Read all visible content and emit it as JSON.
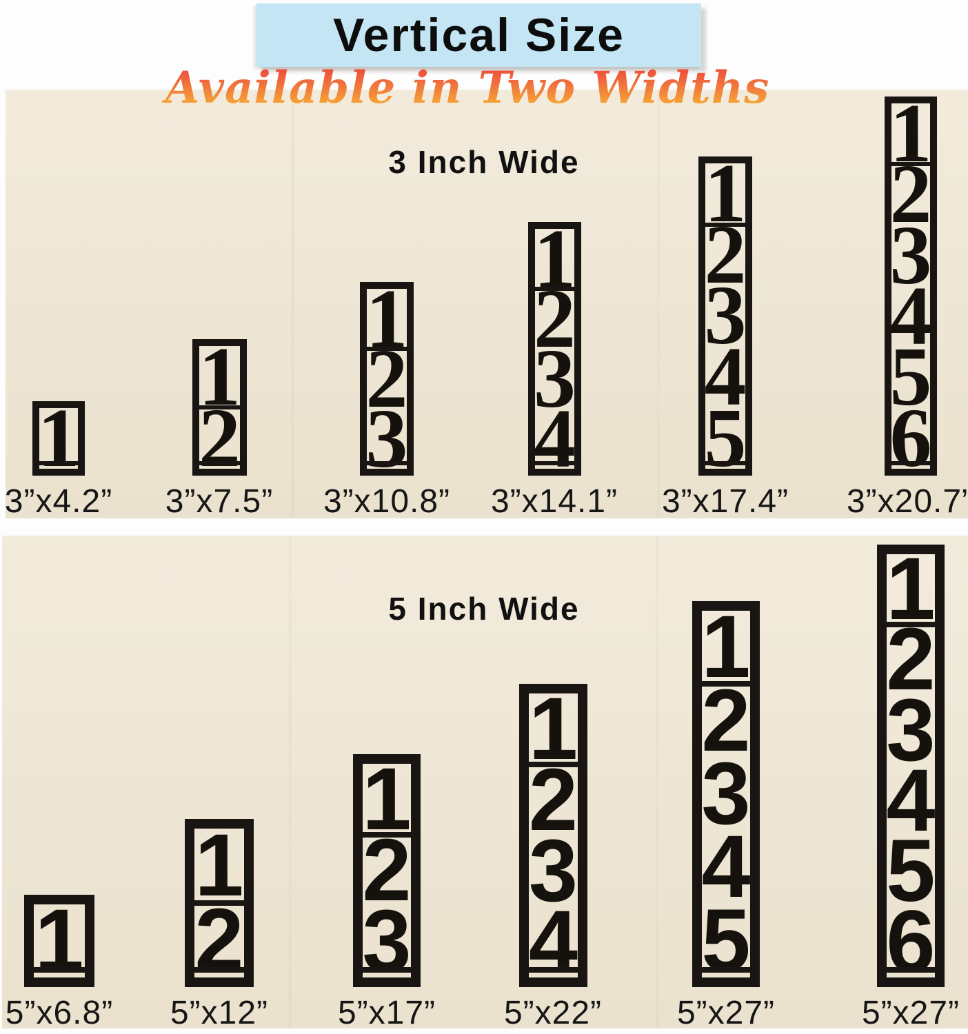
{
  "title": "Vertical Size",
  "subtitle": "Available in Two Widths",
  "colors": {
    "banner_blue": "#c4e6f4",
    "panel_beige": "#eee5d1",
    "sign_black": "#181512",
    "subtitle_gradient_top": "#ee4b3b",
    "subtitle_gradient_bottom": "#f9ae33",
    "text_black": "#111111"
  },
  "sections": [
    {
      "header": "3 Inch Wide",
      "signs": [
        {
          "digits": [
            "1"
          ],
          "label": "3”x4.2”"
        },
        {
          "digits": [
            "1",
            "2"
          ],
          "label": "3”x7.5”"
        },
        {
          "digits": [
            "1",
            "2",
            "3"
          ],
          "label": "3”x10.8”"
        },
        {
          "digits": [
            "1",
            "2",
            "3",
            "4"
          ],
          "label": "3”x14.1”"
        },
        {
          "digits": [
            "1",
            "2",
            "3",
            "4",
            "5"
          ],
          "label": "3”x17.4”"
        },
        {
          "digits": [
            "1",
            "2",
            "3",
            "4",
            "5",
            "6"
          ],
          "label": "3”x20.7”"
        }
      ]
    },
    {
      "header": "5 Inch Wide",
      "signs": [
        {
          "digits": [
            "1"
          ],
          "label": "5”x6.8”"
        },
        {
          "digits": [
            "1",
            "2"
          ],
          "label": "5”x12”"
        },
        {
          "digits": [
            "1",
            "2",
            "3"
          ],
          "label": "5”x17”"
        },
        {
          "digits": [
            "1",
            "2",
            "3",
            "4"
          ],
          "label": "5”x22”"
        },
        {
          "digits": [
            "1",
            "2",
            "3",
            "4",
            "5"
          ],
          "label": "5”x27”"
        },
        {
          "digits": [
            "1",
            "2",
            "3",
            "4",
            "5",
            "6"
          ],
          "label": "5”x27”"
        }
      ]
    }
  ]
}
